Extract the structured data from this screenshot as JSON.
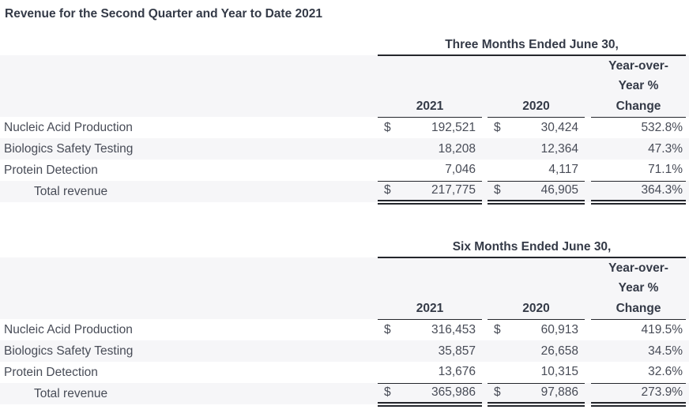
{
  "title": "Revenue for the Second Quarter and Year to Date 2021",
  "colors": {
    "text": "#484c57",
    "heading_text": "#343a47",
    "rule": "#24262c",
    "row_stripe": "#f6f6f8",
    "background": "#ffffff"
  },
  "tables": [
    {
      "caption": "Three Months Ended June 30,",
      "headers": {
        "yoy_line1": "Year-over-",
        "yoy_line2": "Year %",
        "yoy_line3": "Change",
        "col_2021": "2021",
        "col_2020": "2020"
      },
      "rows": [
        {
          "label": "Nucleic Acid Production",
          "cur_2021": "$",
          "v2021": "192,521",
          "cur_2020": "$",
          "v2020": "30,424",
          "change": "532.8%"
        },
        {
          "label": "Biologics Safety Testing",
          "cur_2021": "",
          "v2021": "18,208",
          "cur_2020": "",
          "v2020": "12,364",
          "change": "47.3%"
        },
        {
          "label": "Protein Detection",
          "cur_2021": "",
          "v2021": "7,046",
          "cur_2020": "",
          "v2020": "4,117",
          "change": "71.1%"
        }
      ],
      "total": {
        "label": "Total revenue",
        "cur_2021": "$",
        "v2021": "217,775",
        "cur_2020": "$",
        "v2020": "46,905",
        "change": "364.3%"
      }
    },
    {
      "caption": "Six Months Ended June 30,",
      "headers": {
        "yoy_line1": "Year-over-",
        "yoy_line2": "Year %",
        "yoy_line3": "Change",
        "col_2021": "2021",
        "col_2020": "2020"
      },
      "rows": [
        {
          "label": "Nucleic Acid Production",
          "cur_2021": "$",
          "v2021": "316,453",
          "cur_2020": "$",
          "v2020": "60,913",
          "change": "419.5%"
        },
        {
          "label": "Biologics Safety Testing",
          "cur_2021": "",
          "v2021": "35,857",
          "cur_2020": "",
          "v2020": "26,658",
          "change": "34.5%"
        },
        {
          "label": "Protein Detection",
          "cur_2021": "",
          "v2021": "13,676",
          "cur_2020": "",
          "v2020": "10,315",
          "change": "32.6%"
        }
      ],
      "total": {
        "label": "Total revenue",
        "cur_2021": "$",
        "v2021": "365,986",
        "cur_2020": "$",
        "v2020": "97,886",
        "change": "273.9%"
      }
    }
  ]
}
